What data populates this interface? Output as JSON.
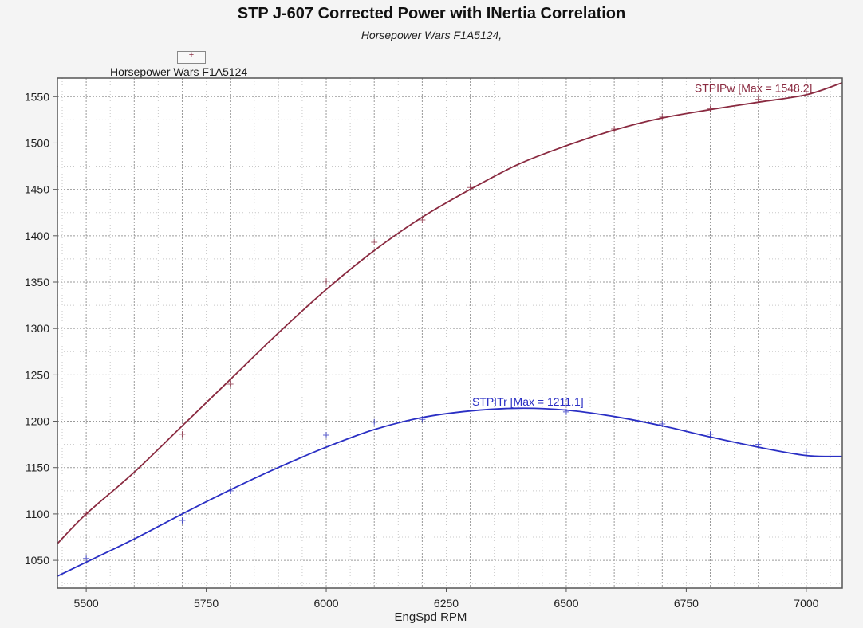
{
  "title": "STP J-607 Corrected Power with INertia Correlation",
  "subtitle": "Horsepower Wars F1A5124,",
  "legend": {
    "label": "Horsepower Wars F1A5124",
    "marker": "+"
  },
  "colors": {
    "power": "#8a2a40",
    "torque": "#2a2fc4",
    "grid": "#9a9a9a",
    "frame": "#555555"
  },
  "chart_data": {
    "type": "line",
    "xlabel": "EngSpd RPM",
    "ylabel": "",
    "xlim": [
      5440,
      7075
    ],
    "ylim": [
      1020,
      1570
    ],
    "x_ticks": [
      5500,
      5750,
      6000,
      6250,
      6500,
      6750,
      7000
    ],
    "y_ticks": [
      1050,
      1100,
      1150,
      1200,
      1250,
      1300,
      1350,
      1400,
      1450,
      1500,
      1550
    ],
    "grid": true,
    "legend_position": "top-left",
    "series": [
      {
        "name": "STPIPw [Max = 1548.2]",
        "key": "power",
        "curve": {
          "x": [
            5440,
            5500,
            5600,
            5700,
            5800,
            5900,
            6000,
            6100,
            6200,
            6300,
            6400,
            6500,
            6600,
            6700,
            6800,
            6900,
            7000,
            7075
          ],
          "y": [
            1068,
            1100,
            1145,
            1195,
            1245,
            1295,
            1342,
            1384,
            1420,
            1450,
            1477,
            1497,
            1514,
            1527,
            1536,
            1544,
            1552,
            1565
          ]
        },
        "samples": {
          "x": [
            5500,
            5700,
            5800,
            6000,
            6100,
            6200,
            6300,
            6600,
            6700,
            6800,
            6900,
            7000
          ],
          "y": [
            1100,
            1186,
            1240,
            1351,
            1393,
            1417,
            1452,
            1515,
            1528,
            1537,
            1547,
            1555
          ]
        }
      },
      {
        "name": "STPITr [Max = 1211.1]",
        "key": "torque",
        "curve": {
          "x": [
            5440,
            5500,
            5600,
            5700,
            5800,
            5900,
            6000,
            6100,
            6200,
            6300,
            6400,
            6500,
            6600,
            6700,
            6800,
            6900,
            7000,
            7075
          ],
          "y": [
            1033,
            1048,
            1073,
            1100,
            1126,
            1150,
            1172,
            1191,
            1204,
            1211,
            1214,
            1212,
            1205,
            1195,
            1183,
            1172,
            1163,
            1162
          ]
        },
        "samples": {
          "x": [
            5500,
            5700,
            5800,
            6000,
            6100,
            6200,
            6500,
            6700,
            6800,
            6900,
            7000
          ],
          "y": [
            1052,
            1093,
            1125,
            1185,
            1199,
            1202,
            1210,
            1197,
            1186,
            1175,
            1166
          ]
        }
      }
    ]
  }
}
